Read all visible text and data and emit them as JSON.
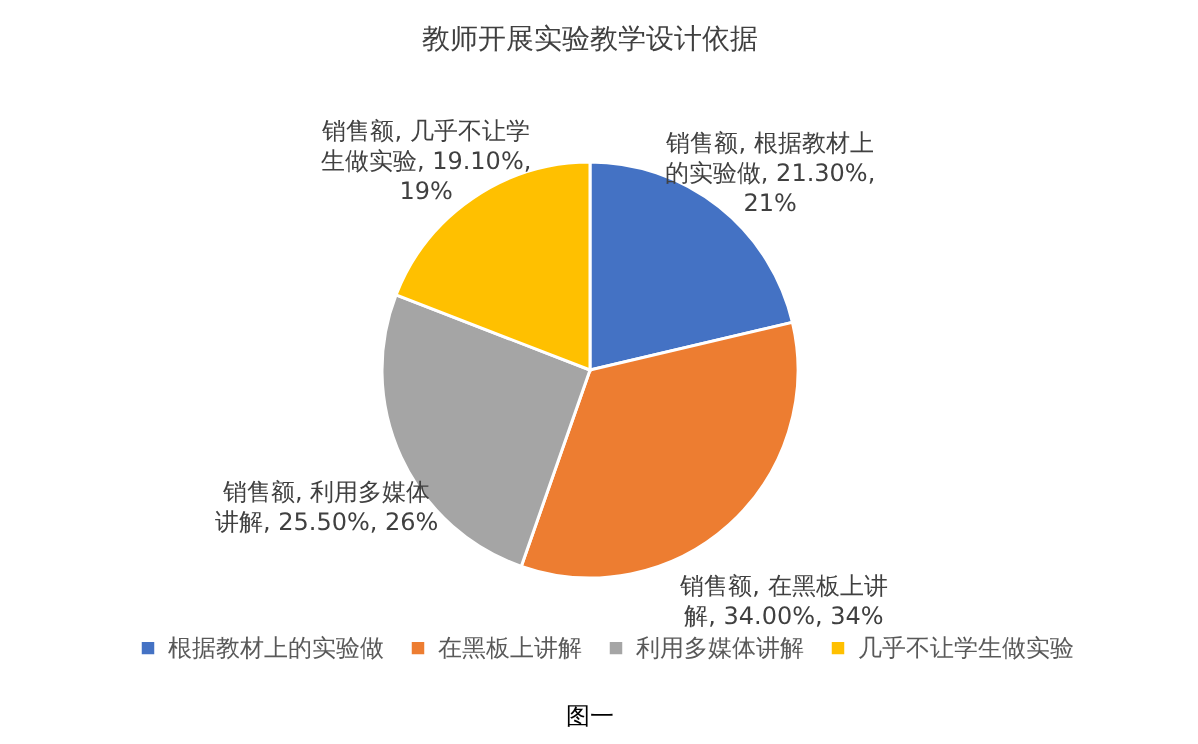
{
  "chart_data": {
    "type": "pie",
    "title": "教师开展实验教学设计依据",
    "categories": [
      "根据教材上的实验做",
      "在黑板上讲解",
      "利用多媒体讲解",
      "几乎不让学生做实验"
    ],
    "values": [
      21.3,
      34.0,
      25.5,
      19.1
    ],
    "colors": [
      "#4472c4",
      "#ed7d31",
      "#a5a5a5",
      "#ffc000"
    ],
    "value_labels": [
      "销售额, 根据教材上的实验做, 21.30%, 21%",
      "销售额, 在黑板上讲解, 34.00%, 34%",
      "销售额, 利用多媒体讲解, 25.50%, 26%",
      "销售额, 几乎不让学生做实验, 19.10%, 19%"
    ],
    "legend": "bottom",
    "annotations": [
      "图一"
    ]
  }
}
